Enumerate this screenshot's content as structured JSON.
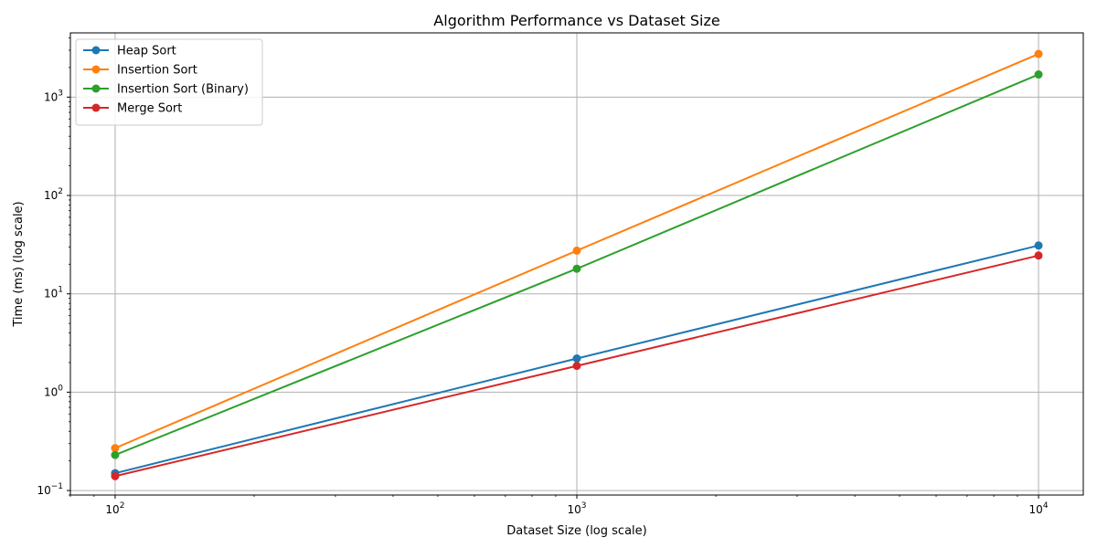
{
  "chart_data": {
    "type": "line",
    "title": "Algorithm Performance vs Dataset Size",
    "xlabel": "Dataset Size (log scale)",
    "ylabel": "Time (ms) (log scale)",
    "xscale": "log",
    "yscale": "log",
    "xlim": [
      80,
      12500
    ],
    "ylim": [
      0.09,
      4500
    ],
    "x": [
      100,
      1000,
      10000
    ],
    "x_ticks": [
      {
        "value": 100,
        "base": "10",
        "exp": "2"
      },
      {
        "value": 1000,
        "base": "10",
        "exp": "3"
      },
      {
        "value": 10000,
        "base": "10",
        "exp": "4"
      }
    ],
    "y_ticks": [
      {
        "value": 0.1,
        "base": "10",
        "exp": "−1"
      },
      {
        "value": 1,
        "base": "10",
        "exp": "0"
      },
      {
        "value": 10,
        "base": "10",
        "exp": "1"
      },
      {
        "value": 100,
        "base": "10",
        "exp": "2"
      },
      {
        "value": 1000,
        "base": "10",
        "exp": "3"
      }
    ],
    "grid": true,
    "legend_position": "top-left",
    "series": [
      {
        "name": "Heap Sort",
        "color": "#1f77b4",
        "values": [
          0.15,
          2.2,
          31
        ]
      },
      {
        "name": "Insertion Sort",
        "color": "#ff7f0e",
        "values": [
          0.27,
          27.5,
          2750
        ]
      },
      {
        "name": "Insertion Sort (Binary)",
        "color": "#2ca02c",
        "values": [
          0.23,
          18,
          1700
        ]
      },
      {
        "name": "Merge Sort",
        "color": "#d62728",
        "values": [
          0.14,
          1.85,
          24.5
        ]
      }
    ]
  }
}
